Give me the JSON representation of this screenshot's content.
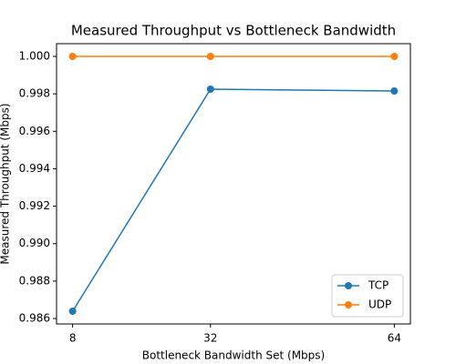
{
  "chart_data": {
    "type": "line",
    "title": "Measured Throughput vs Bottleneck Bandwidth",
    "x_label": "Bottleneck Bandwidth Set (Mbps)",
    "y_label": "Measured Throughput (Mbps)",
    "x": [
      8,
      32,
      64
    ],
    "series": [
      {
        "name": "TCP",
        "color": "#1f77b4",
        "values": [
          0.98639,
          0.99825,
          0.99815
        ]
      },
      {
        "name": "UDP",
        "color": "#ff7f0e",
        "values": [
          1,
          1,
          1
        ]
      }
    ],
    "xlim": [
      5.2,
      66.8
    ],
    "xticks": [
      8,
      32,
      64
    ],
    "ylim": [
      0.98571,
      1.00068
    ],
    "yticks": [
      0.986,
      0.988,
      {
        "value": 0.99,
        "label": "0.990"
      },
      0.992,
      0.994,
      0.996,
      0.998,
      {
        "value": 1,
        "label": "1.000"
      }
    ],
    "legend": "lower right"
  }
}
